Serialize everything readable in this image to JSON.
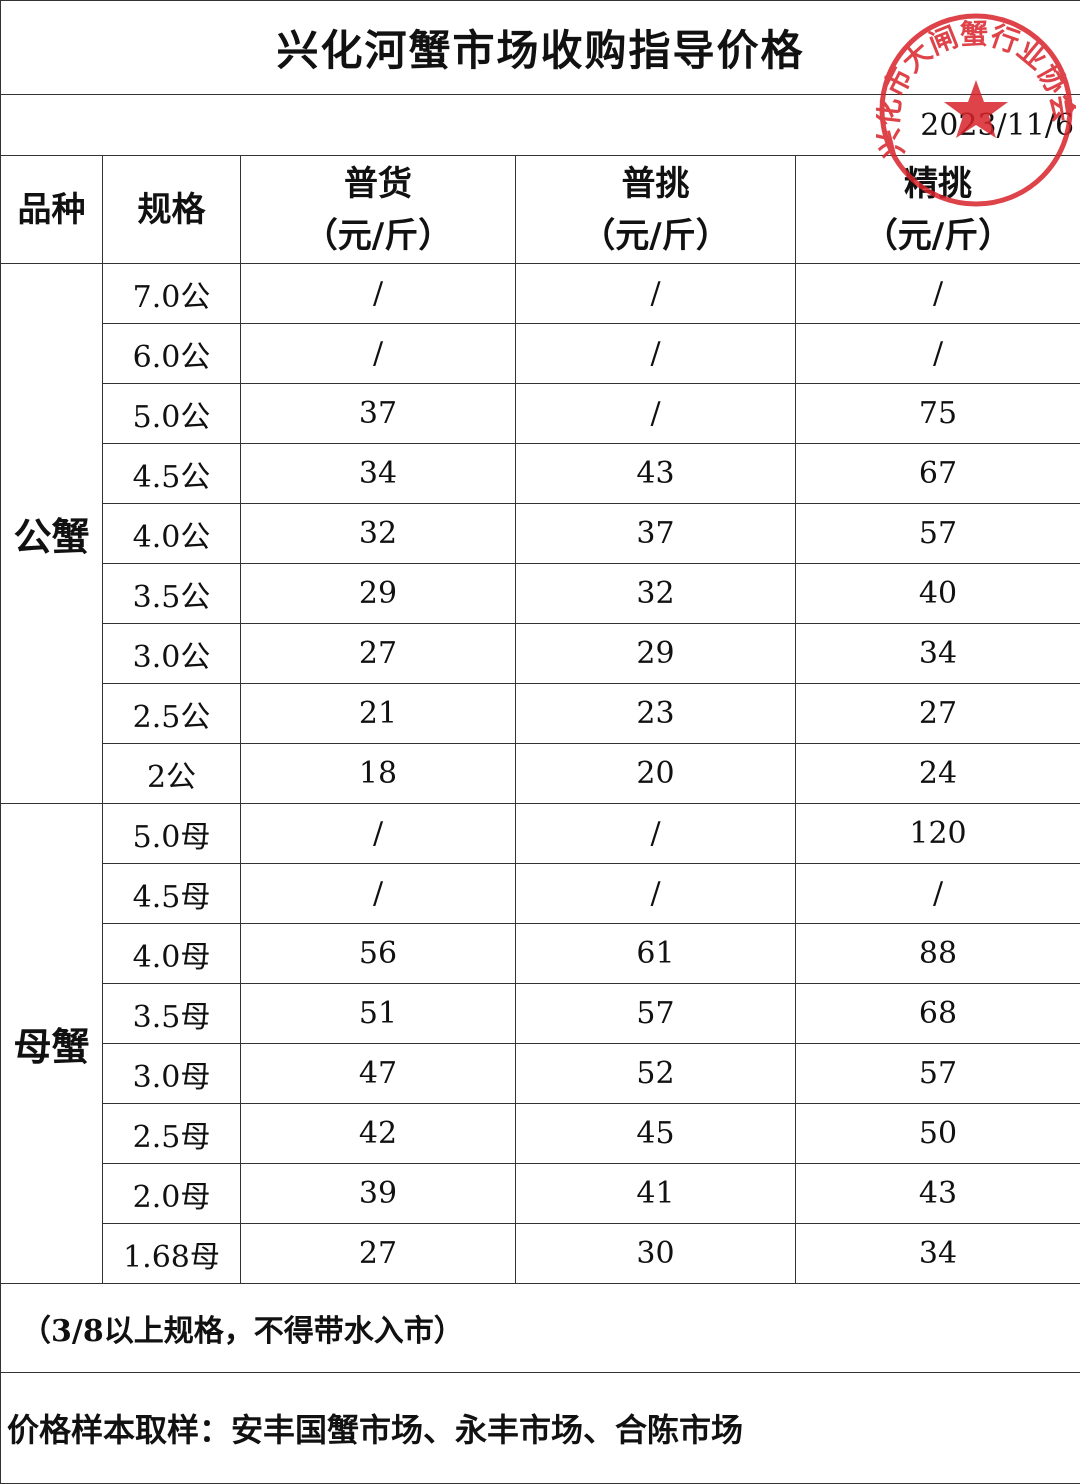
{
  "title": "兴化河蟹市场收购指导价格",
  "date": "2023/11/6",
  "stamp": "兴化市大闸蟹行业协会",
  "table": {
    "headers": [
      {
        "name": "品种"
      },
      {
        "name": "规格"
      },
      {
        "name": "普货",
        "unit": "（元/斤）"
      },
      {
        "name": "普挑",
        "unit": "（元/斤）"
      },
      {
        "name": "精挑",
        "unit": "（元/斤）"
      }
    ],
    "groups": [
      {
        "name": "公蟹",
        "rows": [
          [
            "7.0公",
            "/",
            "/",
            "/"
          ],
          [
            "6.0公",
            "/",
            "/",
            "/"
          ],
          [
            "5.0公",
            37,
            "/",
            75
          ],
          [
            "4.5公",
            34,
            43,
            67
          ],
          [
            "4.0公",
            32,
            37,
            57
          ],
          [
            "3.5公",
            29,
            32,
            40
          ],
          [
            "3.0公",
            27,
            29,
            34
          ],
          [
            "2.5公",
            21,
            23,
            27
          ],
          [
            "2公",
            18,
            20,
            24
          ]
        ]
      },
      {
        "name": "母蟹",
        "rows": [
          [
            "5.0母",
            "/",
            "/",
            120
          ],
          [
            "4.5母",
            "/",
            "/",
            "/"
          ],
          [
            "4.0母",
            56,
            61,
            88
          ],
          [
            "3.5母",
            51,
            57,
            68
          ],
          [
            "3.0母",
            47,
            52,
            57
          ],
          [
            "2.5母",
            42,
            45,
            50
          ],
          [
            "2.0母",
            39,
            41,
            43
          ],
          [
            "1.68母",
            27,
            30,
            34
          ]
        ]
      }
    ]
  },
  "note": "（3/8以上规格，不得带水入市）",
  "footer": "价格样本取样：安丰国蟹市场、永丰市场、合陈市场"
}
